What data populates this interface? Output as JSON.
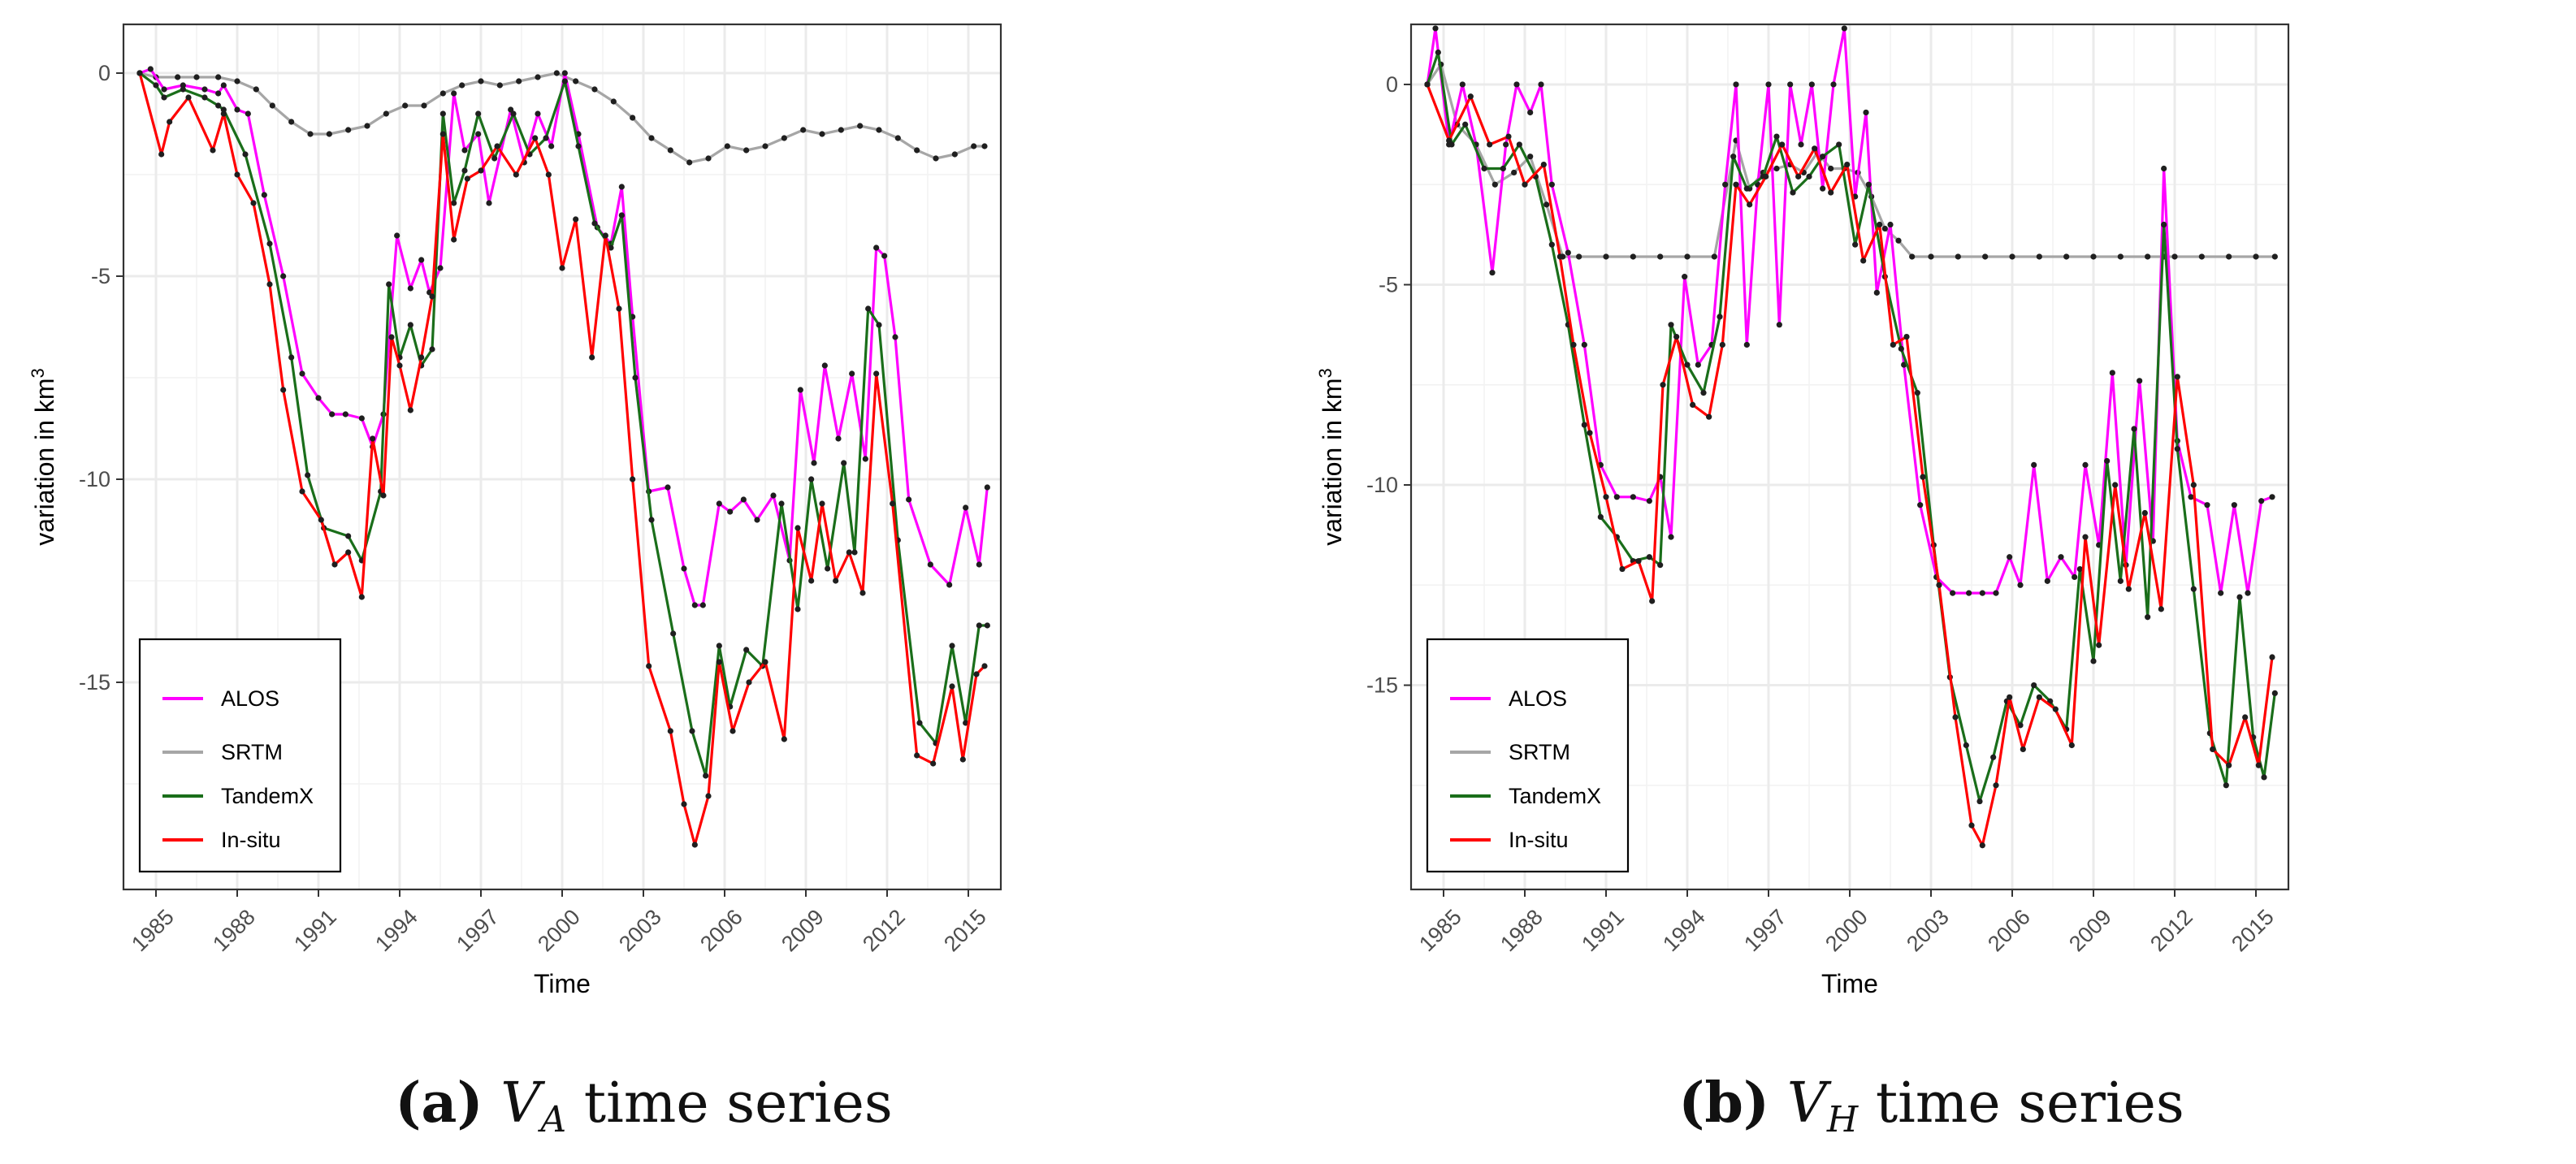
{
  "chart_data": [
    {
      "type": "line",
      "panel_label": "(a)",
      "caption_var": "V",
      "caption_sub": "A",
      "caption_text": " time series",
      "xlabel": "Time",
      "ylabel": "variation in km",
      "ylabel_sup": "3",
      "xlim": [
        1983.8,
        2016.2
      ],
      "ylim": [
        -20.1,
        1.2
      ],
      "x_ticks": [
        1985,
        1988,
        1991,
        1994,
        1997,
        2000,
        2003,
        2006,
        2009,
        2012,
        2015
      ],
      "y_ticks": [
        0,
        -5,
        -10,
        -15
      ],
      "y_tick_labels": [
        "0",
        "-5",
        "-10",
        "-15"
      ],
      "legend_position": "bottom-left",
      "series": [
        {
          "name": "ALOS",
          "color": "#ff00ff",
          "x": [
            1984.4,
            1984.8,
            1985.3,
            1986,
            1986.8,
            1987.3,
            1987.5,
            1988,
            1988.4,
            1989,
            1989.7,
            1990.4,
            1991,
            1991.5,
            1992,
            1992.6,
            1993,
            1993.4,
            1993.9,
            1994.4,
            1994.8,
            1995.1,
            1995.5,
            1996,
            1996.4,
            1996.9,
            1997.3,
            1998.1,
            1998.6,
            1999.1,
            1999.6,
            2000.1,
            2000.6,
            2001.3,
            2001.8,
            2002.2,
            2002.6,
            2003.2,
            2003.9,
            2004.5,
            2004.9,
            2005.2,
            2005.8,
            2006.2,
            2006.7,
            2007.2,
            2007.8,
            2008.4,
            2008.8,
            2009.3,
            2009.7,
            2010.2,
            2010.7,
            2011.2,
            2011.6,
            2011.9,
            2012.3,
            2012.8,
            2013.6,
            2014.3,
            2014.9,
            2015.4,
            2015.7
          ],
          "y": [
            0,
            0.1,
            -0.4,
            -0.3,
            -0.4,
            -0.5,
            -0.3,
            -0.9,
            -1.0,
            -3.0,
            -5.0,
            -7.4,
            -8.0,
            -8.4,
            -8.4,
            -8.5,
            -9.2,
            -8.4,
            -4.0,
            -5.3,
            -4.6,
            -5.4,
            -4.8,
            -0.5,
            -1.9,
            -1.5,
            -3.2,
            -0.9,
            -2.2,
            -1.0,
            -1.8,
            0.0,
            -1.5,
            -3.8,
            -4.2,
            -2.8,
            -6.0,
            -10.3,
            -10.2,
            -12.2,
            -13.1,
            -13.1,
            -10.6,
            -10.8,
            -10.5,
            -11.0,
            -10.4,
            -12.0,
            -7.8,
            -9.6,
            -7.2,
            -9.0,
            -7.4,
            -9.5,
            -4.3,
            -4.5,
            -6.5,
            -10.5,
            -12.1,
            -12.6,
            -10.7,
            -12.1,
            -10.2
          ]
        },
        {
          "name": "SRTM",
          "color": "#a6a6a6",
          "x": [
            1984.4,
            1985,
            1985.8,
            1986.5,
            1987.3,
            1988,
            1988.7,
            1989.3,
            1990,
            1990.7,
            1991.4,
            1992.1,
            1992.8,
            1993.5,
            1994.2,
            1994.9,
            1995.6,
            1996.3,
            1997,
            1997.7,
            1998.4,
            1999.1,
            1999.8,
            2000.5,
            2001.2,
            2001.9,
            2002.6,
            2003.3,
            2004,
            2004.7,
            2005.4,
            2006.1,
            2006.8,
            2007.5,
            2008.2,
            2008.9,
            2009.6,
            2010.3,
            2011,
            2011.7,
            2012.4,
            2013.1,
            2013.8,
            2014.5,
            2015.2,
            2015.6
          ],
          "y": [
            0,
            -0.1,
            -0.1,
            -0.1,
            -0.1,
            -0.2,
            -0.4,
            -0.8,
            -1.2,
            -1.5,
            -1.5,
            -1.4,
            -1.3,
            -1.0,
            -0.8,
            -0.8,
            -0.5,
            -0.3,
            -0.2,
            -0.3,
            -0.2,
            -0.1,
            0.0,
            -0.2,
            -0.4,
            -0.7,
            -1.1,
            -1.6,
            -1.9,
            -2.2,
            -2.1,
            -1.8,
            -1.9,
            -1.8,
            -1.6,
            -1.4,
            -1.5,
            -1.4,
            -1.3,
            -1.4,
            -1.6,
            -1.9,
            -2.1,
            -2.0,
            -1.8,
            -1.8
          ]
        },
        {
          "name": "TandemX",
          "color": "#1a6e1a",
          "x": [
            1984.4,
            1985,
            1985.3,
            1986,
            1986.8,
            1987.3,
            1987.5,
            1988.3,
            1989.2,
            1990,
            1990.6,
            1991.2,
            1992.1,
            1992.6,
            1993.3,
            1993.6,
            1994,
            1994.4,
            1994.8,
            1995.2,
            1995.6,
            1996,
            1996.4,
            1996.9,
            1997.5,
            1998.2,
            1998.8,
            1999.4,
            2000.1,
            2000.6,
            2001.2,
            2001.8,
            2002.2,
            2002.7,
            2003.3,
            2004.1,
            2004.8,
            2005.3,
            2005.8,
            2006.2,
            2006.8,
            2007.4,
            2008.1,
            2008.7,
            2009.2,
            2009.8,
            2010.4,
            2010.8,
            2011.3,
            2011.7,
            2012.4,
            2013.2,
            2013.8,
            2014.4,
            2014.9,
            2015.4,
            2015.7
          ],
          "y": [
            0,
            -0.3,
            -0.6,
            -0.4,
            -0.6,
            -0.8,
            -0.9,
            -2.0,
            -4.2,
            -7.0,
            -9.9,
            -11.2,
            -11.4,
            -12.0,
            -10.3,
            -5.2,
            -7.0,
            -6.2,
            -7.2,
            -6.8,
            -1.0,
            -3.2,
            -2.4,
            -1.0,
            -2.1,
            -1.0,
            -2.0,
            -1.6,
            -0.2,
            -1.8,
            -3.7,
            -4.3,
            -3.5,
            -7.5,
            -11.0,
            -13.8,
            -16.2,
            -17.3,
            -14.1,
            -15.6,
            -14.2,
            -14.6,
            -10.6,
            -13.2,
            -10.0,
            -12.2,
            -9.6,
            -11.8,
            -5.8,
            -6.2,
            -11.5,
            -16.0,
            -16.5,
            -14.1,
            -16.0,
            -13.6,
            -13.6
          ]
        },
        {
          "name": "In-situ",
          "color": "#ff0000",
          "x": [
            1984.4,
            1985.2,
            1985.5,
            1986.2,
            1987.1,
            1987.5,
            1988,
            1988.6,
            1989.2,
            1989.7,
            1990.4,
            1991.1,
            1991.6,
            1992.1,
            1992.6,
            1993,
            1993.4,
            1993.7,
            1994,
            1994.4,
            1994.8,
            1995.2,
            1995.6,
            1996,
            1996.5,
            1997,
            1997.6,
            1998.3,
            1999,
            1999.5,
            2000,
            2000.5,
            2001.1,
            2001.6,
            2002.1,
            2002.6,
            2003.2,
            2004,
            2004.5,
            2004.9,
            2005.4,
            2005.8,
            2006.3,
            2006.9,
            2007.5,
            2008.2,
            2008.7,
            2009.2,
            2009.6,
            2010.1,
            2010.6,
            2011.1,
            2011.6,
            2012.2,
            2013.1,
            2013.7,
            2014.4,
            2014.8,
            2015.3,
            2015.6
          ],
          "y": [
            0,
            -2.0,
            -1.2,
            -0.6,
            -1.9,
            -1.0,
            -2.5,
            -3.2,
            -5.2,
            -7.8,
            -10.3,
            -11.0,
            -12.1,
            -11.8,
            -12.9,
            -9.0,
            -10.4,
            -6.5,
            -7.2,
            -8.3,
            -7.0,
            -5.5,
            -1.5,
            -4.1,
            -2.6,
            -2.4,
            -1.8,
            -2.5,
            -1.6,
            -2.5,
            -4.8,
            -3.6,
            -7.0,
            -4.0,
            -5.8,
            -10.0,
            -14.6,
            -16.2,
            -18.0,
            -19.0,
            -17.8,
            -14.5,
            -16.2,
            -15.0,
            -14.5,
            -16.4,
            -11.2,
            -12.5,
            -10.6,
            -12.5,
            -11.8,
            -12.8,
            -7.4,
            -10.6,
            -16.8,
            -17.0,
            -15.1,
            -16.9,
            -14.8,
            -14.6
          ]
        }
      ]
    },
    {
      "type": "line",
      "panel_label": "(b)",
      "caption_var": "V",
      "caption_sub": "H",
      "caption_text": " time series",
      "xlabel": "Time",
      "ylabel": "variation in km",
      "ylabel_sup": "3",
      "xlim": [
        1983.8,
        2016.2
      ],
      "ylim": [
        -20.1,
        1.5
      ],
      "x_ticks": [
        1985,
        1988,
        1991,
        1994,
        1997,
        2000,
        2003,
        2006,
        2009,
        2012,
        2015
      ],
      "y_ticks": [
        0,
        -5,
        -10,
        -15
      ],
      "y_tick_labels": [
        "0",
        "-5",
        "-10",
        "-15"
      ],
      "legend_position": "bottom-left",
      "series": [
        {
          "name": "ALOS",
          "color": "#ff00ff",
          "x": [
            1984.4,
            1984.7,
            1985.2,
            1985.7,
            1986.2,
            1986.8,
            1987.3,
            1987.7,
            1988.2,
            1988.6,
            1989,
            1989.6,
            1990.2,
            1990.8,
            1991.4,
            1992,
            1992.6,
            1993,
            1993.4,
            1993.9,
            1994.4,
            1994.9,
            1995.4,
            1995.8,
            1996.2,
            1996.6,
            1997,
            1997.4,
            1997.8,
            1998.2,
            1998.6,
            1999,
            1999.4,
            1999.8,
            2000.2,
            2000.6,
            2001,
            2001.5,
            2002,
            2002.6,
            2003.2,
            2003.8,
            2004.4,
            2004.9,
            2005.4,
            2005.9,
            2006.3,
            2006.8,
            2007.3,
            2007.8,
            2008.3,
            2008.7,
            2009.2,
            2009.7,
            2010.2,
            2010.7,
            2011.2,
            2011.6,
            2012.1,
            2012.6,
            2013.2,
            2013.7,
            2014.2,
            2014.7,
            2015.2,
            2015.6
          ],
          "y": [
            0,
            1.4,
            -1.5,
            0,
            -1.5,
            -4.7,
            -1.5,
            0,
            -0.7,
            0,
            -2.5,
            -4.2,
            -6.5,
            -9.5,
            -10.3,
            -10.3,
            -10.4,
            -9.8,
            -11.3,
            -4.8,
            -7.0,
            -6.5,
            -2.5,
            0,
            -6.5,
            -2.5,
            0,
            -6.0,
            0,
            -1.5,
            0,
            -2.6,
            0,
            1.4,
            -2.8,
            -0.7,
            -5.2,
            -3.5,
            -7.0,
            -10.5,
            -12.3,
            -12.7,
            -12.7,
            -12.7,
            -12.7,
            -11.8,
            -12.5,
            -9.5,
            -12.4,
            -11.8,
            -12.3,
            -9.5,
            -11.5,
            -7.2,
            -12.0,
            -7.4,
            -11.4,
            -2.1,
            -8.9,
            -10.3,
            -10.5,
            -12.7,
            -10.5,
            -12.7,
            -10.4,
            -10.3
          ]
        },
        {
          "name": "SRTM",
          "color": "#a6a6a6",
          "x": [
            1984.4,
            1984.9,
            1985.5,
            1986.2,
            1986.9,
            1987.6,
            1988.2,
            1988.8,
            1989.4,
            1990,
            1991,
            1992,
            1993,
            1994,
            1995,
            1995.8,
            1996.3,
            1996.8,
            1997.3,
            1997.8,
            1998.3,
            1998.8,
            1999.3,
            1999.8,
            2000.3,
            2000.8,
            2001.3,
            2001.8,
            2002.3,
            2003,
            2004,
            2005,
            2006,
            2007,
            2008,
            2009,
            2010,
            2011,
            2011.6,
            2012,
            2013,
            2014,
            2015,
            2015.7
          ],
          "y": [
            0,
            0.5,
            -1.0,
            -1.5,
            -2.5,
            -2.2,
            -1.8,
            -3.0,
            -4.3,
            -4.3,
            -4.3,
            -4.3,
            -4.3,
            -4.3,
            -4.3,
            -1.4,
            -2.6,
            -2.2,
            -2.1,
            -2.0,
            -2.2,
            -1.7,
            -2.1,
            -2.1,
            -2.2,
            -2.8,
            -3.6,
            -3.9,
            -4.3,
            -4.3,
            -4.3,
            -4.3,
            -4.3,
            -4.3,
            -4.3,
            -4.3,
            -4.3,
            -4.3,
            -4.3,
            -4.3,
            -4.3,
            -4.3,
            -4.3,
            -4.3
          ]
        },
        {
          "name": "TandemX",
          "color": "#1a6e1a",
          "x": [
            1984.4,
            1984.8,
            1985.3,
            1985.8,
            1986.5,
            1987.2,
            1987.8,
            1988.4,
            1989,
            1989.6,
            1990.2,
            1990.8,
            1991.4,
            1992,
            1992.6,
            1993,
            1993.4,
            1994,
            1994.6,
            1995.2,
            1995.7,
            1996.2,
            1996.8,
            1997.3,
            1997.9,
            1998.5,
            1999,
            1999.6,
            2000.2,
            2000.7,
            2001.3,
            2001.9,
            2002.5,
            2003.1,
            2003.7,
            2004.3,
            2004.8,
            2005.3,
            2005.8,
            2006.3,
            2006.8,
            2007.4,
            2008,
            2008.5,
            2009,
            2009.5,
            2010,
            2010.5,
            2011,
            2011.6,
            2012.1,
            2012.7,
            2013.3,
            2013.9,
            2014.4,
            2014.9,
            2015.3,
            2015.7
          ],
          "y": [
            0,
            0.8,
            -1.5,
            -1.0,
            -2.1,
            -2.1,
            -1.5,
            -2.3,
            -4.0,
            -6.0,
            -8.5,
            -10.8,
            -11.3,
            -11.9,
            -11.8,
            -12.0,
            -6.0,
            -7.0,
            -7.7,
            -5.8,
            -1.8,
            -2.6,
            -2.3,
            -1.3,
            -2.7,
            -2.3,
            -1.8,
            -1.5,
            -4.0,
            -2.5,
            -4.8,
            -6.6,
            -7.7,
            -11.5,
            -14.8,
            -16.5,
            -17.9,
            -16.8,
            -15.4,
            -16.0,
            -15.0,
            -15.4,
            -16.1,
            -12.1,
            -14.4,
            -9.4,
            -12.4,
            -8.6,
            -13.3,
            -3.5,
            -9.1,
            -12.6,
            -16.2,
            -17.5,
            -12.8,
            -16.3,
            -17.3,
            -15.2
          ]
        },
        {
          "name": "In-situ",
          "color": "#ff0000",
          "x": [
            1984.4,
            1985.2,
            1986,
            1986.7,
            1987.4,
            1988,
            1988.7,
            1989.3,
            1989.8,
            1990.4,
            1991,
            1991.6,
            1992.2,
            1992.7,
            1993.1,
            1993.6,
            1994.2,
            1994.8,
            1995.3,
            1995.8,
            1996.3,
            1996.9,
            1997.5,
            1998.1,
            1998.7,
            1999.3,
            1999.9,
            2000.5,
            2001.1,
            2001.6,
            2002.1,
            2002.7,
            2003.3,
            2003.9,
            2004.5,
            2004.9,
            2005.4,
            2005.9,
            2006.4,
            2007,
            2007.6,
            2008.2,
            2008.7,
            2009.2,
            2009.8,
            2010.3,
            2010.9,
            2011.5,
            2012.1,
            2012.7,
            2013.4,
            2014,
            2014.6,
            2015.1,
            2015.6
          ],
          "y": [
            0,
            -1.4,
            -0.3,
            -1.5,
            -1.3,
            -2.5,
            -2.0,
            -4.3,
            -6.5,
            -8.7,
            -10.3,
            -12.1,
            -11.9,
            -12.9,
            -7.5,
            -6.3,
            -8.0,
            -8.3,
            -6.5,
            -2.5,
            -3.0,
            -2.3,
            -1.5,
            -2.3,
            -1.6,
            -2.7,
            -2.0,
            -4.4,
            -3.5,
            -6.5,
            -6.3,
            -9.8,
            -12.5,
            -15.8,
            -18.5,
            -19.0,
            -17.5,
            -15.3,
            -16.6,
            -15.3,
            -15.6,
            -16.5,
            -11.3,
            -14.0,
            -10.0,
            -12.6,
            -10.7,
            -13.1,
            -7.3,
            -10.0,
            -16.6,
            -17.0,
            -15.8,
            -17.0,
            -14.3
          ]
        }
      ]
    }
  ]
}
